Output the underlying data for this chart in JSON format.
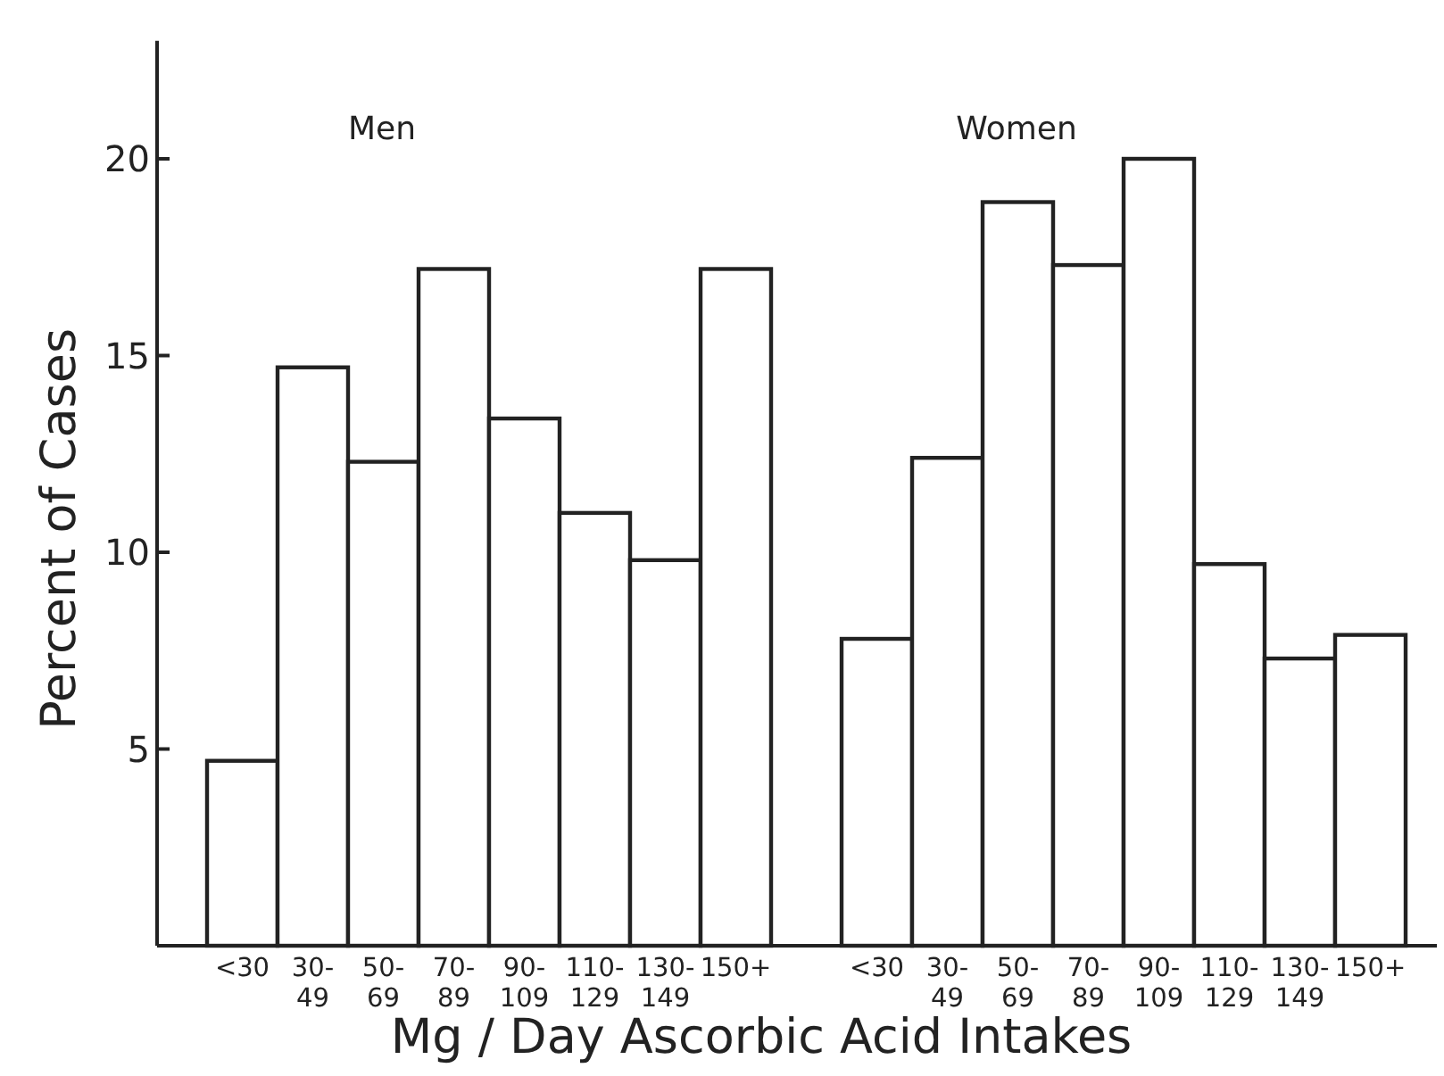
{
  "chart_data": {
    "type": "bar",
    "categories": [
      "<30",
      "30-49",
      "50-69",
      "70-89",
      "90-109",
      "110-129",
      "130-149",
      "150+",
      null,
      "<30",
      "30-49",
      "50-69",
      "70-89",
      "90-109",
      "110-129",
      "130-149",
      "150+"
    ],
    "values": [
      4.7,
      14.7,
      12.3,
      17.2,
      13.4,
      11.0,
      9.8,
      17.2,
      null,
      7.8,
      12.4,
      18.9,
      17.3,
      20.0,
      9.7,
      7.3,
      7.9
    ],
    "color": "#ffffff",
    "xlabel": "Mg / Day Ascorbic Acid Intakes",
    "ylabel": "Percent of Cases",
    "annotations": [
      "Men",
      "Women"
    ],
    "ylim": [
      0,
      23
    ],
    "yticks": [
      5,
      10,
      15,
      20
    ],
    "grid": false
  }
}
